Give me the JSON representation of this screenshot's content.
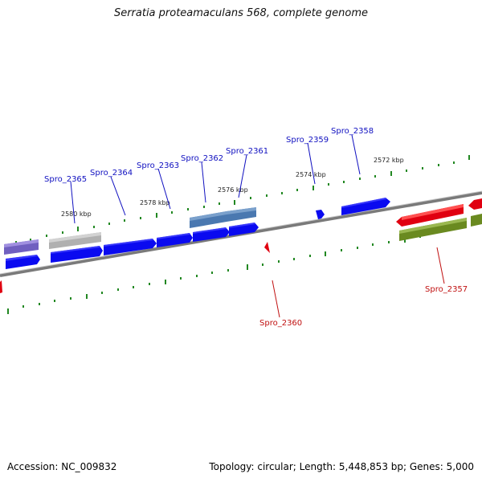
{
  "title": "Serratia proteamaculans 568, complete genome",
  "accession": "Accession: NC_009832",
  "summary": "Topology: circular; Length: 5,448,853 bp; Genes: 5,000",
  "ticks": [
    "2580 kbp",
    "2578 kbp",
    "2576 kbp",
    "2574 kbp",
    "2572 kbp"
  ],
  "genes_forward": [
    "Spro_2365",
    "Spro_2364",
    "Spro_2363",
    "Spro_2362",
    "Spro_2361",
    "Spro_2359",
    "Spro_2358"
  ],
  "genes_reverse": [
    "Spro_2360",
    "Spro_2357"
  ],
  "colors": {
    "forward": "#0a0af0",
    "reverse": "#e00010",
    "steelblue": "#4a78b0",
    "gray": "#b0b0b0",
    "purple": "#7060c0",
    "olive": "#6a8a20",
    "label_forward": "#1010c0",
    "label_reverse": "#c01010",
    "tick": "#228822"
  }
}
